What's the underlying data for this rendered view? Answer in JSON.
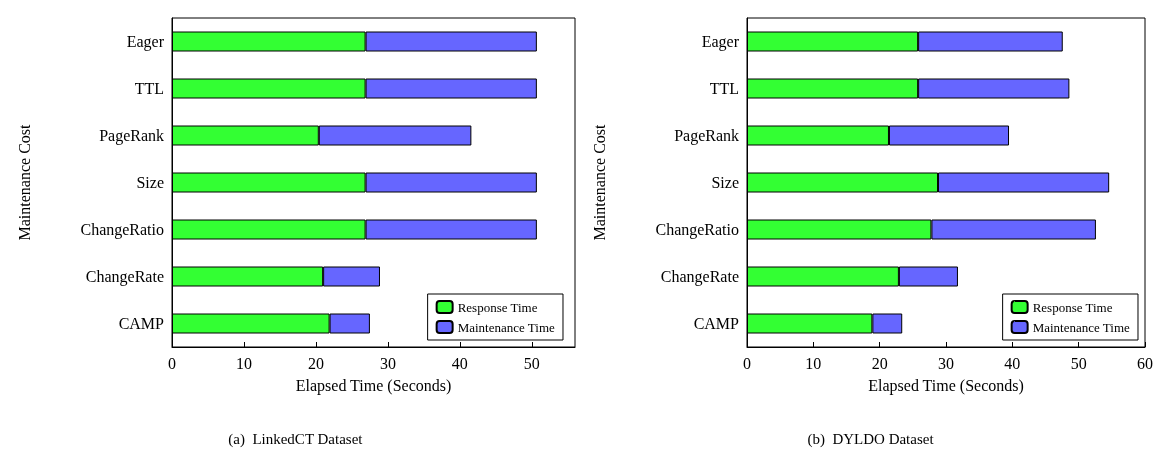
{
  "chart_data": [
    {
      "type": "bar",
      "orientation": "horizontal",
      "stacked": true,
      "xlabel": "Elapsed Time (Seconds)",
      "ylabel": "Maintenance Cost",
      "annotations": [
        "(a)  LinkedCT Dataset"
      ],
      "categories": [
        "Eager",
        "TTL",
        "PageRank",
        "Size",
        "ChangeRatio",
        "ChangeRate",
        "CAMP"
      ],
      "series": [
        {
          "name": "Response Time",
          "color": "#33ff33",
          "values": [
            26.9,
            26.9,
            20.4,
            26.9,
            26.9,
            21.0,
            21.9
          ]
        },
        {
          "name": "Maintenance Time",
          "color": "#6666ff",
          "values": [
            23.8,
            23.8,
            21.2,
            23.8,
            23.8,
            7.9,
            5.6
          ]
        }
      ],
      "xlim": [
        0,
        56
      ],
      "xticks": [
        0,
        10,
        20,
        30,
        40,
        50
      ],
      "grid": false,
      "legend": "bottom right"
    },
    {
      "type": "bar",
      "orientation": "horizontal",
      "stacked": true,
      "xlabel": "Elapsed Time (Seconds)",
      "ylabel": "Maintenance Cost",
      "annotations": [
        "(b)  DYLDO Dataset"
      ],
      "categories": [
        "Eager",
        "TTL",
        "PageRank",
        "Size",
        "ChangeRatio",
        "ChangeRate",
        "CAMP"
      ],
      "series": [
        {
          "name": "Response Time",
          "color": "#33ff33",
          "values": [
            25.8,
            25.8,
            21.4,
            28.8,
            27.8,
            22.9,
            18.9
          ]
        },
        {
          "name": "Maintenance Time",
          "color": "#6666ff",
          "values": [
            21.8,
            22.8,
            18.1,
            25.8,
            24.8,
            8.9,
            4.5
          ]
        }
      ],
      "xlim": [
        0,
        60
      ],
      "xticks": [
        0,
        10,
        20,
        30,
        40,
        50,
        60
      ],
      "grid": false,
      "legend": "bottom right"
    }
  ]
}
